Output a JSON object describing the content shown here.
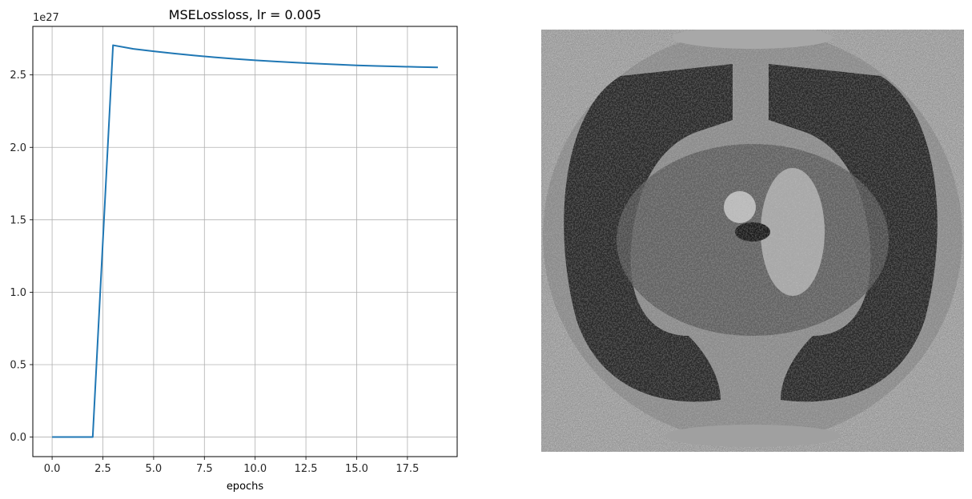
{
  "chart_data": {
    "type": "line",
    "title": "MSELossloss, lr = 0.005",
    "xlabel": "epochs",
    "ylabel": "",
    "y_offset_label": "1e27",
    "xlim": [
      -0.95,
      19.95
    ],
    "ylim": [
      -0.135,
      2.835
    ],
    "y_scale_exponent": 27,
    "grid": true,
    "x_ticks": [
      0.0,
      2.5,
      5.0,
      7.5,
      10.0,
      12.5,
      15.0,
      17.5
    ],
    "x_tick_labels": [
      "0.0",
      "2.5",
      "5.0",
      "7.5",
      "10.0",
      "12.5",
      "15.0",
      "17.5"
    ],
    "y_ticks": [
      0.0,
      0.5,
      1.0,
      1.5,
      2.0,
      2.5
    ],
    "y_tick_labels": [
      "0.0",
      "0.5",
      "1.0",
      "1.5",
      "2.0",
      "2.5"
    ],
    "series": [
      {
        "color": "#1f77b4",
        "x": [
          0,
          1,
          2,
          3,
          4,
          5,
          6,
          7,
          8,
          9,
          10,
          11,
          12,
          13,
          14,
          15,
          16,
          17,
          18,
          19
        ],
        "y": [
          0.0,
          0.0,
          0.0,
          2.705,
          2.68,
          2.663,
          2.648,
          2.634,
          2.622,
          2.611,
          2.601,
          2.593,
          2.585,
          2.578,
          2.572,
          2.566,
          2.562,
          2.558,
          2.555,
          2.552
        ]
      }
    ]
  },
  "image_panel": {
    "description_icon": "ct-scan-image",
    "palette": "grayscale"
  }
}
